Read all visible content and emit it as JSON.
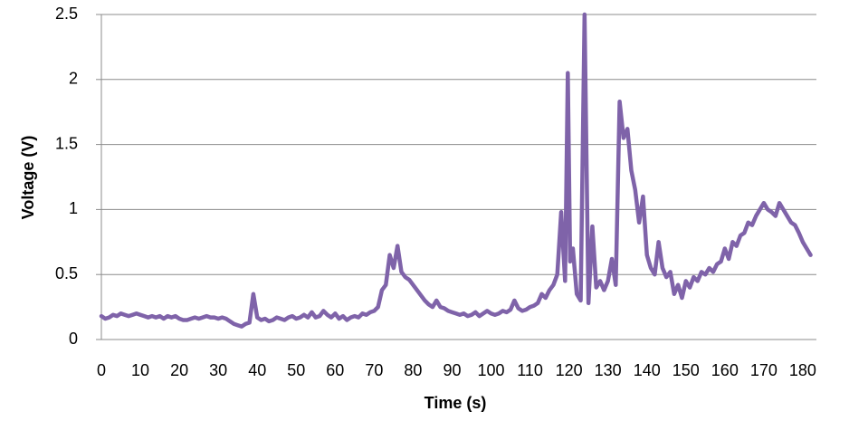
{
  "chart_data": {
    "type": "line",
    "x_label": "Time (s)",
    "y_label": "Voltage (V)",
    "x": [
      0,
      1,
      2,
      3,
      4,
      5,
      6,
      7,
      8,
      9,
      10,
      11,
      12,
      13,
      14,
      15,
      16,
      17,
      18,
      19,
      20,
      21,
      22,
      23,
      24,
      25,
      26,
      27,
      28,
      29,
      30,
      31,
      32,
      33,
      34,
      35,
      36,
      37,
      38,
      39,
      40,
      41,
      42,
      43,
      44,
      45,
      46,
      47,
      48,
      49,
      50,
      51,
      52,
      53,
      54,
      55,
      56,
      57,
      58,
      59,
      60,
      61,
      62,
      63,
      64,
      65,
      66,
      67,
      68,
      69,
      70,
      71,
      72,
      73,
      74,
      75,
      76,
      77,
      78,
      79,
      80,
      81,
      82,
      83,
      84,
      85,
      86,
      87,
      88,
      89,
      90,
      91,
      92,
      93,
      94,
      95,
      96,
      97,
      98,
      99,
      100,
      101,
      102,
      103,
      104,
      105,
      106,
      107,
      108,
      109,
      110,
      111,
      112,
      113,
      114,
      115,
      116,
      117,
      118,
      119,
      119.7,
      120.3,
      121,
      122,
      123,
      124,
      125,
      126,
      127,
      128,
      129,
      130,
      131,
      132,
      133,
      134,
      135,
      136,
      137,
      138,
      139,
      140,
      141,
      142,
      143,
      144,
      145,
      146,
      147,
      148,
      149,
      150,
      151,
      152,
      153,
      154,
      155,
      156,
      157,
      158,
      159,
      160,
      161,
      162,
      163,
      164,
      165,
      166,
      167,
      168,
      169,
      170,
      171,
      172,
      173,
      174,
      175,
      176,
      177,
      178,
      179,
      180,
      181,
      182
    ],
    "values": [
      0.18,
      0.16,
      0.17,
      0.19,
      0.18,
      0.2,
      0.19,
      0.18,
      0.19,
      0.2,
      0.19,
      0.18,
      0.17,
      0.18,
      0.17,
      0.18,
      0.16,
      0.18,
      0.17,
      0.18,
      0.16,
      0.15,
      0.15,
      0.16,
      0.17,
      0.16,
      0.17,
      0.18,
      0.17,
      0.17,
      0.16,
      0.17,
      0.16,
      0.14,
      0.12,
      0.11,
      0.1,
      0.12,
      0.13,
      0.35,
      0.17,
      0.15,
      0.16,
      0.14,
      0.15,
      0.17,
      0.16,
      0.15,
      0.17,
      0.18,
      0.16,
      0.17,
      0.19,
      0.17,
      0.21,
      0.17,
      0.18,
      0.22,
      0.19,
      0.17,
      0.2,
      0.16,
      0.18,
      0.15,
      0.17,
      0.18,
      0.17,
      0.2,
      0.19,
      0.21,
      0.22,
      0.25,
      0.38,
      0.42,
      0.65,
      0.55,
      0.72,
      0.52,
      0.48,
      0.46,
      0.42,
      0.38,
      0.34,
      0.3,
      0.27,
      0.25,
      0.3,
      0.25,
      0.24,
      0.22,
      0.21,
      0.2,
      0.19,
      0.2,
      0.18,
      0.19,
      0.21,
      0.18,
      0.2,
      0.22,
      0.2,
      0.19,
      0.2,
      0.22,
      0.21,
      0.23,
      0.3,
      0.24,
      0.22,
      0.23,
      0.25,
      0.26,
      0.28,
      0.35,
      0.32,
      0.38,
      0.42,
      0.5,
      0.98,
      0.45,
      2.05,
      0.6,
      0.7,
      0.35,
      0.3,
      2.5,
      0.28,
      0.87,
      0.4,
      0.45,
      0.38,
      0.45,
      0.62,
      0.42,
      1.83,
      1.55,
      1.62,
      1.3,
      1.15,
      0.9,
      1.1,
      0.65,
      0.55,
      0.5,
      0.75,
      0.55,
      0.48,
      0.52,
      0.35,
      0.42,
      0.32,
      0.45,
      0.4,
      0.48,
      0.45,
      0.52,
      0.5,
      0.55,
      0.52,
      0.58,
      0.6,
      0.7,
      0.62,
      0.75,
      0.72,
      0.8,
      0.82,
      0.9,
      0.88,
      0.95,
      1.0,
      1.05,
      1.0,
      0.98,
      0.95,
      1.05,
      1.0,
      0.95,
      0.9,
      0.88,
      0.82,
      0.75,
      0.7,
      0.65
    ],
    "color": "#7f63a9",
    "xlim": [
      0,
      183.5
    ],
    "xticks": [
      0,
      10,
      20,
      30,
      40,
      50,
      60,
      70,
      80,
      90,
      100,
      110,
      120,
      130,
      140,
      150,
      160,
      170,
      180
    ],
    "ylim": [
      0,
      2.5
    ],
    "yticks": [
      0,
      0.5,
      1,
      1.5,
      2,
      2.5
    ],
    "grid": true
  }
}
